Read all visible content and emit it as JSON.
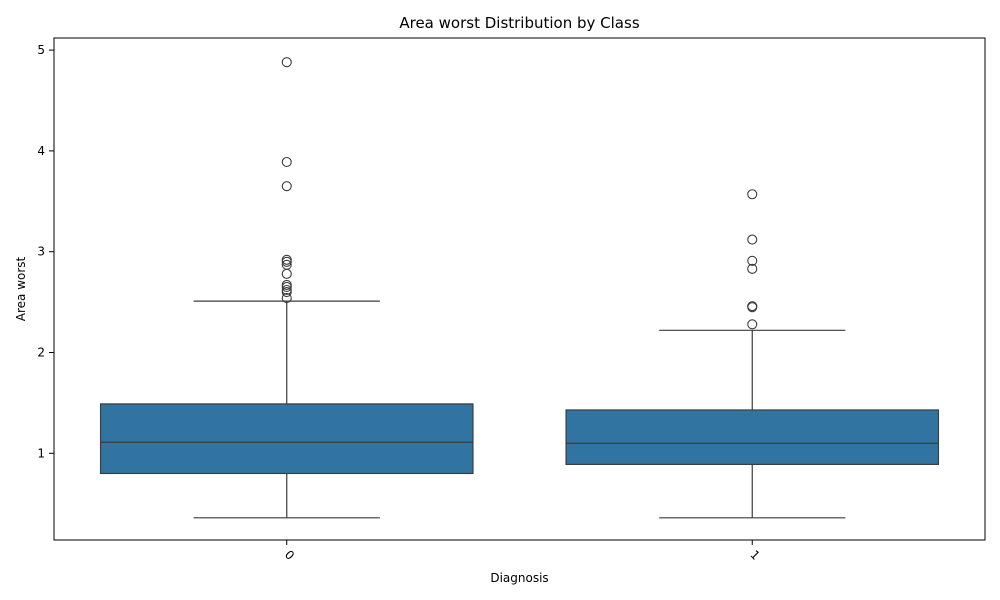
{
  "chart_data": {
    "type": "box",
    "title": "Area worst Distribution by Class",
    "xlabel": "Diagnosis",
    "ylabel": "Area worst",
    "ylim": [
      0.14,
      5.12
    ],
    "y_ticks": [
      1,
      2,
      3,
      4,
      5
    ],
    "grid": false,
    "colors": {
      "box_fill": "#3274a1",
      "line": "#3c3c3c",
      "axis": "#000000",
      "outlier_edge": "#3c3c3c"
    },
    "boxes": [
      {
        "category": "0",
        "whisker_low": 0.36,
        "q1": 0.8,
        "median": 1.11,
        "q3": 1.49,
        "whisker_high": 2.51,
        "outliers": [
          4.88,
          3.89,
          3.65,
          2.92,
          2.9,
          2.87,
          2.78,
          2.67,
          2.65,
          2.62,
          2.6,
          2.54
        ]
      },
      {
        "category": "1",
        "whisker_low": 0.36,
        "q1": 0.89,
        "median": 1.1,
        "q3": 1.43,
        "whisker_high": 2.22,
        "outliers": [
          3.57,
          3.12,
          2.91,
          2.83,
          2.46,
          2.45,
          2.28
        ]
      }
    ]
  }
}
